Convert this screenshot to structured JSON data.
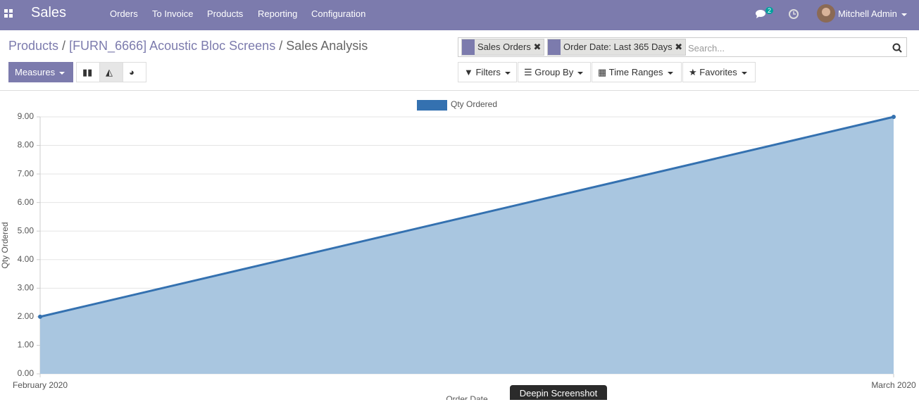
{
  "navbar": {
    "app": "Sales",
    "menu": [
      "Orders",
      "To Invoice",
      "Products",
      "Reporting",
      "Configuration"
    ],
    "messages": 2,
    "user": "Mitchell Admin"
  },
  "breadcrumb": [
    "Products",
    "[FURN_6666] Acoustic Bloc Screens",
    "Sales Analysis"
  ],
  "search": {
    "facets": [
      "Sales Orders",
      "Order Date: Last 365 Days"
    ],
    "placeholder": "Search..."
  },
  "buttons": {
    "measures": "Measures",
    "filters": "Filters",
    "group_by": "Group By",
    "time_ranges": "Time Ranges",
    "favorites": "Favorites"
  },
  "tooltip": "Deepin Screenshot",
  "chart_data": {
    "type": "line",
    "area": true,
    "x": [
      "February 2020",
      "March 2020"
    ],
    "series": [
      {
        "name": "Qty Ordered",
        "color": "#3471b0",
        "fill": "#a9c6e0",
        "values": [
          2,
          9
        ]
      }
    ],
    "ylabel": "Qty Ordered",
    "xlabel": "Order Date",
    "ylim": [
      0,
      9
    ],
    "yticks": [
      {
        "value": 0,
        "label": "0.00"
      },
      {
        "value": 1,
        "label": "1.00"
      },
      {
        "value": 2,
        "label": "2.00"
      },
      {
        "value": 3,
        "label": "3.00"
      },
      {
        "value": 4,
        "label": "4.00"
      },
      {
        "value": 5,
        "label": "5.00"
      },
      {
        "value": 6,
        "label": "6.00"
      },
      {
        "value": 7,
        "label": "7.00"
      },
      {
        "value": 8,
        "label": "8.00"
      },
      {
        "value": 9,
        "label": "9.00"
      }
    ],
    "grid": true
  }
}
